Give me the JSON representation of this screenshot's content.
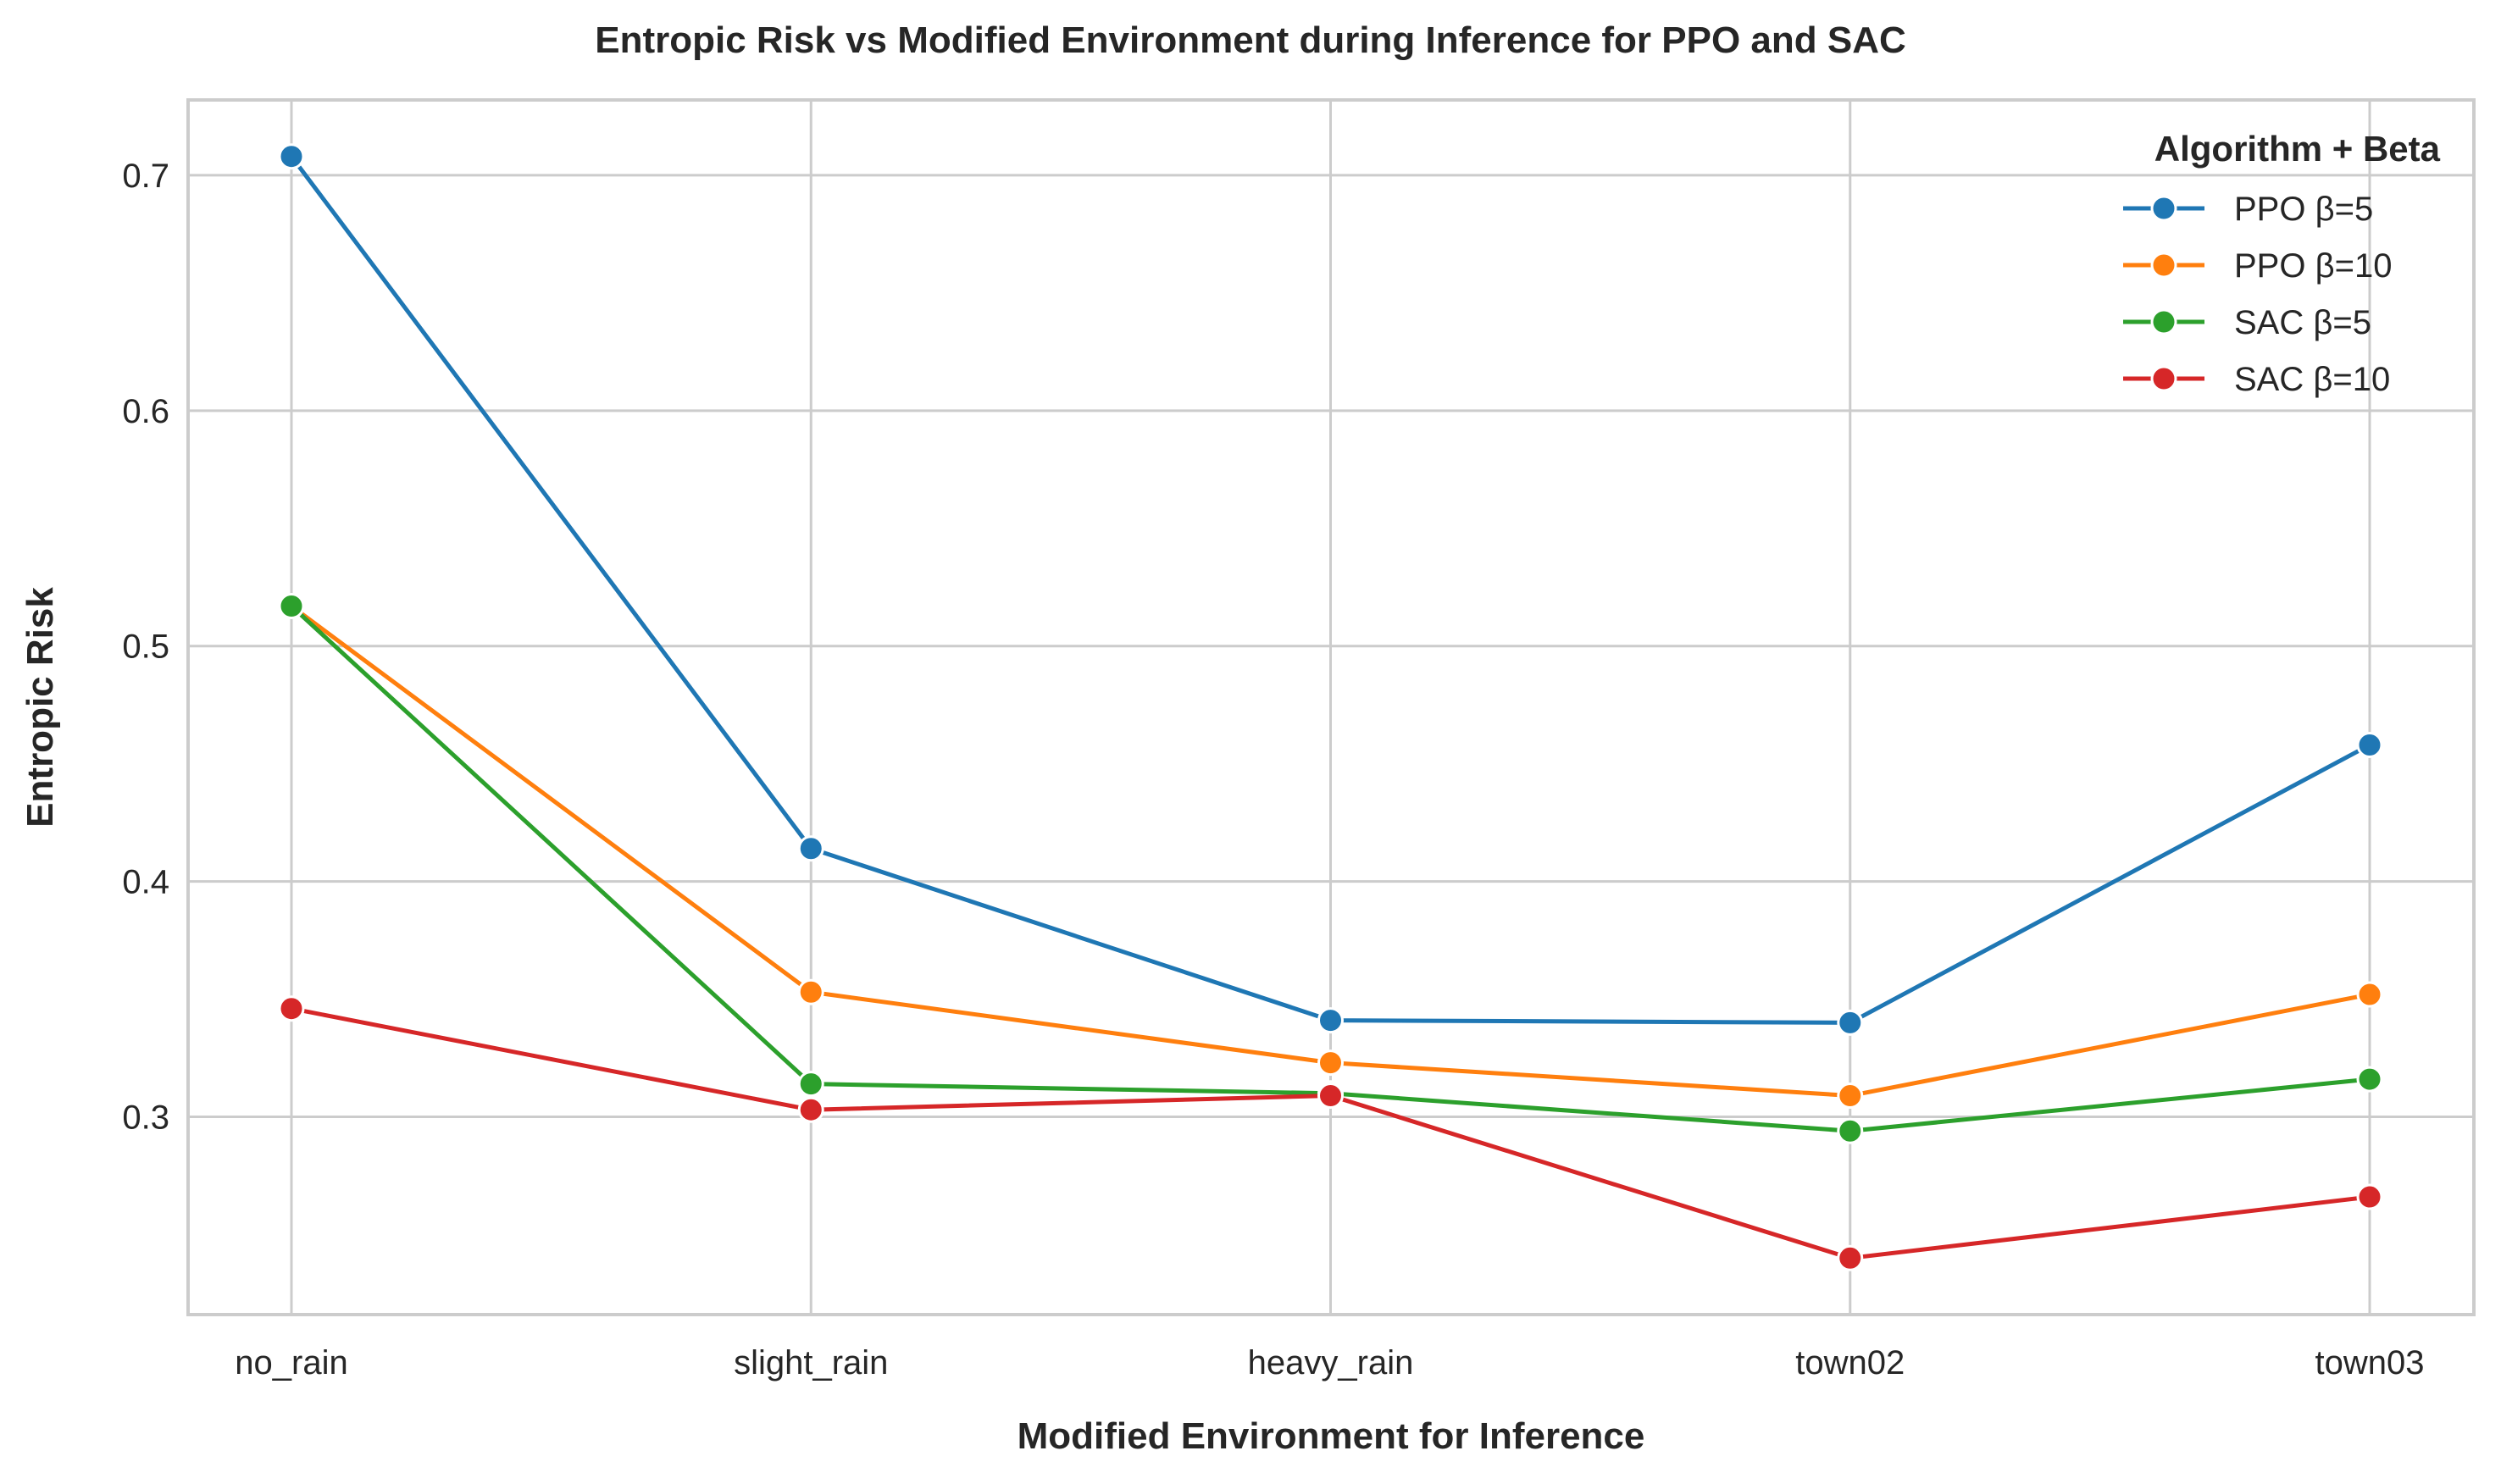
{
  "chart_data": {
    "type": "line",
    "title": "Entropic Risk vs Modified Environment during Inference for PPO and SAC",
    "xlabel": "Modified Environment for Inference",
    "ylabel": "Entropic Risk",
    "categories": [
      "no_rain",
      "slight_rain",
      "heavy_rain",
      "town02",
      "town03"
    ],
    "ylim": [
      0.216,
      0.732
    ],
    "yticks": [
      0.3,
      0.4,
      0.5,
      0.6,
      0.7
    ],
    "ytick_labels": [
      "0.3",
      "0.4",
      "0.5",
      "0.6",
      "0.7"
    ],
    "grid": true,
    "legend": {
      "title": "Algorithm + Beta",
      "placement": "top-right"
    },
    "series": [
      {
        "name": "PPO β=5",
        "color": "#1f77b4",
        "values": [
          0.708,
          0.414,
          0.341,
          0.34,
          0.458
        ]
      },
      {
        "name": "PPO β=10",
        "color": "#ff7f0e",
        "values": [
          0.517,
          0.353,
          0.323,
          0.309,
          0.352
        ]
      },
      {
        "name": "SAC β=5",
        "color": "#2ca02c",
        "values": [
          0.517,
          0.314,
          0.31,
          0.294,
          0.316
        ]
      },
      {
        "name": "SAC β=10",
        "color": "#d62728",
        "values": [
          0.346,
          0.303,
          0.309,
          0.24,
          0.266
        ]
      }
    ]
  }
}
